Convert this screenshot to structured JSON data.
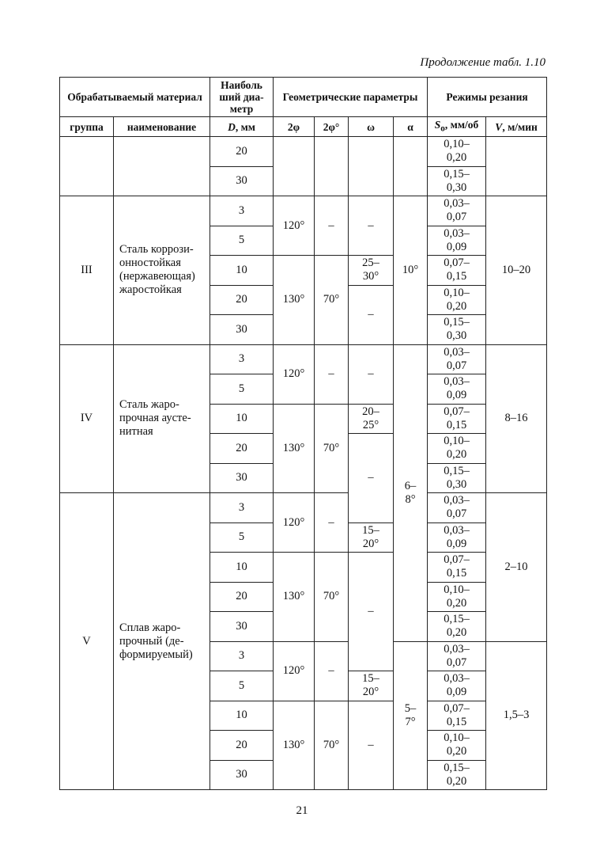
{
  "caption": "Продолжение табл. 1.10",
  "header": {
    "material": "Обрабатываемый материал",
    "diameter": "Наиболь ший диа-метр",
    "geometry": "Геометрические параметры",
    "modes": "Режимы резания",
    "group": "группа",
    "name": "наименование",
    "d_sym": "D",
    "d_unit": ", мм",
    "phi2": "2φ",
    "phi2b": "2φ°",
    "omega": "ω",
    "alpha": "α",
    "s_sym": "S",
    "s_sub": "o",
    "s_unit": ", мм/об",
    "v_sym": "V",
    "v_unit": ", м/мин"
  },
  "body": [
    [
      {
        "v": "",
        "rs": 2,
        "c": "group"
      },
      {
        "v": "",
        "rs": 2,
        "c": "name"
      },
      {
        "v": "20",
        "c": "d"
      },
      {
        "v": "",
        "rs": 2,
        "c": "phi2"
      },
      {
        "v": "",
        "rs": 2,
        "c": "phi2b"
      },
      {
        "v": "",
        "rs": 2,
        "c": "omega"
      },
      {
        "v": "",
        "rs": 2,
        "c": "alpha"
      },
      {
        "v": "0,10–\n0,20",
        "c": "s"
      },
      {
        "v": "",
        "rs": 2,
        "c": "v"
      }
    ],
    [
      {
        "v": "30",
        "c": "d"
      },
      {
        "v": "0,15–\n0,30",
        "c": "s"
      }
    ],
    [
      {
        "v": "III",
        "rs": 5,
        "c": "group"
      },
      {
        "v": "Сталь коррози-\nонностойкая\n(нержавеющая)\nжаростойкая",
        "rs": 5,
        "c": "name"
      },
      {
        "v": "3",
        "c": "d"
      },
      {
        "v": "120°",
        "rs": 2,
        "c": "phi2"
      },
      {
        "v": "–",
        "rs": 2,
        "c": "phi2b"
      },
      {
        "v": "–",
        "rs": 2,
        "c": "omega"
      },
      {
        "v": "10°",
        "rs": 5,
        "c": "alpha"
      },
      {
        "v": "0,03–\n0,07",
        "c": "s"
      },
      {
        "v": "10–20",
        "rs": 5,
        "c": "v"
      }
    ],
    [
      {
        "v": "5",
        "c": "d"
      },
      {
        "v": "0,03–\n0,09",
        "c": "s"
      }
    ],
    [
      {
        "v": "10",
        "c": "d"
      },
      {
        "v": "130°",
        "rs": 3,
        "c": "phi2"
      },
      {
        "v": "70°",
        "rs": 3,
        "c": "phi2b"
      },
      {
        "v": "25–\n30°",
        "c": "omega"
      },
      {
        "v": "0,07–\n0,15",
        "c": "s"
      }
    ],
    [
      {
        "v": "20",
        "c": "d"
      },
      {
        "v": "–",
        "rs": 2,
        "c": "omega"
      },
      {
        "v": "0,10–\n0,20",
        "c": "s"
      }
    ],
    [
      {
        "v": "30",
        "c": "d"
      },
      {
        "v": "0,15–\n0,30",
        "c": "s"
      }
    ],
    [
      {
        "v": "IV",
        "rs": 5,
        "c": "group"
      },
      {
        "v": "Сталь жаро-\nпрочная аусте-\nнитная",
        "rs": 5,
        "c": "name"
      },
      {
        "v": "3",
        "c": "d"
      },
      {
        "v": "120°",
        "rs": 2,
        "c": "phi2"
      },
      {
        "v": "–",
        "rs": 2,
        "c": "phi2b"
      },
      {
        "v": "–",
        "rs": 2,
        "c": "omega"
      },
      {
        "v": "6–\n8°",
        "rs": 10,
        "c": "alpha"
      },
      {
        "v": "0,03–\n0,07",
        "c": "s"
      },
      {
        "v": "8–16",
        "rs": 5,
        "c": "v"
      }
    ],
    [
      {
        "v": "5",
        "c": "d"
      },
      {
        "v": "0,03–\n0,09",
        "c": "s"
      }
    ],
    [
      {
        "v": "10",
        "c": "d"
      },
      {
        "v": "130°",
        "rs": 3,
        "c": "phi2"
      },
      {
        "v": "70°",
        "rs": 3,
        "c": "phi2b"
      },
      {
        "v": "20–\n25°",
        "c": "omega"
      },
      {
        "v": "0,07–\n0,15",
        "c": "s"
      }
    ],
    [
      {
        "v": "20",
        "c": "d"
      },
      {
        "v": "–",
        "rs": 3,
        "c": "omega"
      },
      {
        "v": "0,10–\n0,20",
        "c": "s"
      }
    ],
    [
      {
        "v": "30",
        "c": "d"
      },
      {
        "v": "0,15–\n0,30",
        "c": "s"
      }
    ],
    [
      {
        "v": "V",
        "rs": 10,
        "c": "group"
      },
      {
        "v": "Сплав жаро-\nпрочный (де-\nформируемый)",
        "rs": 10,
        "c": "name"
      },
      {
        "v": "3",
        "c": "d"
      },
      {
        "v": "120°",
        "rs": 2,
        "c": "phi2"
      },
      {
        "v": "–",
        "rs": 2,
        "c": "phi2b"
      },
      {
        "v": "0,03–\n0,07",
        "c": "s"
      },
      {
        "v": "2–10",
        "rs": 5,
        "c": "v"
      }
    ],
    [
      {
        "v": "5",
        "c": "d"
      },
      {
        "v": "15–\n20°",
        "c": "omega"
      },
      {
        "v": "0,03–\n0,09",
        "c": "s"
      }
    ],
    [
      {
        "v": "10",
        "c": "d"
      },
      {
        "v": "130°",
        "rs": 3,
        "c": "phi2"
      },
      {
        "v": "70°",
        "rs": 3,
        "c": "phi2b"
      },
      {
        "v": "–",
        "rs": 4,
        "c": "omega"
      },
      {
        "v": "0,07–\n0,15",
        "c": "s"
      }
    ],
    [
      {
        "v": "20",
        "c": "d"
      },
      {
        "v": "0,10–\n0,20",
        "c": "s"
      }
    ],
    [
      {
        "v": "30",
        "c": "d"
      },
      {
        "v": "0,15–\n0,20",
        "c": "s"
      }
    ],
    [
      {
        "v": "3",
        "c": "d"
      },
      {
        "v": "120°",
        "rs": 2,
        "c": "phi2"
      },
      {
        "v": "–",
        "rs": 2,
        "c": "phi2b"
      },
      {
        "v": "5–\n7°",
        "rs": 5,
        "c": "alpha"
      },
      {
        "v": "0,03–\n0,07",
        "c": "s"
      },
      {
        "v": "1,5–3",
        "rs": 5,
        "c": "v"
      }
    ],
    [
      {
        "v": "5",
        "c": "d"
      },
      {
        "v": "15–\n20°",
        "c": "omega"
      },
      {
        "v": "0,03–\n0,09",
        "c": "s"
      }
    ],
    [
      {
        "v": "10",
        "c": "d"
      },
      {
        "v": "130°",
        "rs": 3,
        "c": "phi2"
      },
      {
        "v": "70°",
        "rs": 3,
        "c": "phi2b"
      },
      {
        "v": "–",
        "rs": 3,
        "c": "omega"
      },
      {
        "v": "0,07–\n0,15",
        "c": "s"
      }
    ],
    [
      {
        "v": "20",
        "c": "d"
      },
      {
        "v": "0,10–\n0,20",
        "c": "s"
      }
    ],
    [
      {
        "v": "30",
        "c": "d"
      },
      {
        "v": "0,15–\n0,20",
        "c": "s"
      }
    ]
  ],
  "page_number": "21"
}
